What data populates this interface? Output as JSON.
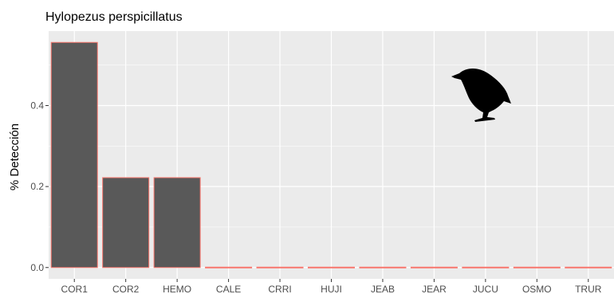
{
  "chart_data": {
    "type": "bar",
    "title": "Hylopezus perspicillatus",
    "xlabel": "",
    "ylabel": "% Detección",
    "categories": [
      "COR1",
      "COR2",
      "HEMO",
      "CALE",
      "CRRI",
      "HUJI",
      "JEAB",
      "JEAR",
      "JUCU",
      "OSMO",
      "TRUR"
    ],
    "values": [
      0.556,
      0.222,
      0.222,
      0,
      0,
      0,
      0,
      0,
      0,
      0,
      0
    ],
    "ylim": [
      -0.028,
      0.584
    ],
    "yticks": [
      0.0,
      0.2,
      0.4
    ],
    "ytick_labels": [
      "0.0",
      "0.2",
      "0.4"
    ],
    "grid": true,
    "legend": "none",
    "bar_fill": "#595959",
    "bar_outline": "#f8766d",
    "panel_background": "#ebebeb",
    "gridline_color": "#ffffff",
    "silhouette_icon": "bird-silhouette-icon",
    "silhouette_color": "#000000"
  }
}
